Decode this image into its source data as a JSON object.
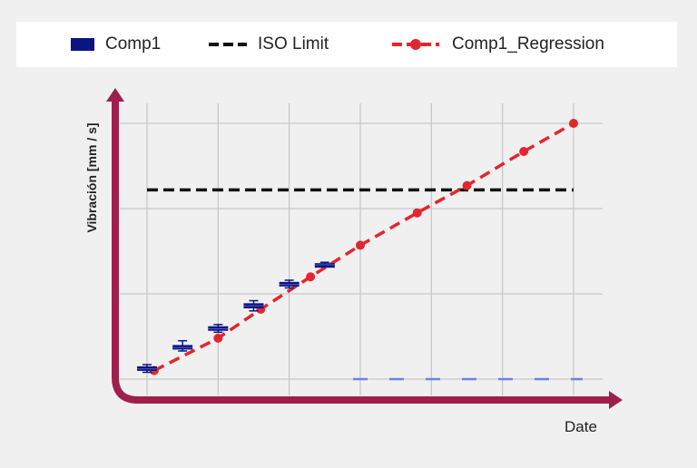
{
  "legend": {
    "comp1": "Comp1",
    "iso": "ISO Limit",
    "regression": "Comp1_Regression"
  },
  "colors": {
    "comp1": "#0a1482",
    "iso": "#111111",
    "regression": "#e3262e",
    "axis": "#a01e4b",
    "baseline": "#6e82dc",
    "grid": "#c8c8c8"
  },
  "chart_data": {
    "type": "line",
    "xlabel": "Date",
    "ylabel": "Vibración [mm / s]",
    "x_tick_labels_shown": false,
    "y_tick_labels_shown": false,
    "xlim": [
      0,
      6
    ],
    "ylim": [
      0,
      3
    ],
    "grid": true,
    "legend_position": "top",
    "comp1_boxes": [
      {
        "x": 0.0,
        "low": 0.08,
        "q1": 0.1,
        "median": 0.12,
        "q3": 0.15,
        "high": 0.17
      },
      {
        "x": 0.5,
        "low": 0.33,
        "q1": 0.35,
        "median": 0.37,
        "q3": 0.4,
        "high": 0.45
      },
      {
        "x": 1.0,
        "low": 0.55,
        "q1": 0.57,
        "median": 0.59,
        "q3": 0.62,
        "high": 0.64
      },
      {
        "x": 1.5,
        "low": 0.8,
        "q1": 0.83,
        "median": 0.86,
        "q3": 0.89,
        "high": 0.92
      },
      {
        "x": 2.0,
        "low": 1.07,
        "q1": 1.09,
        "median": 1.11,
        "q3": 1.14,
        "high": 1.16
      },
      {
        "x": 2.5,
        "low": 1.32,
        "q1": 1.33,
        "median": 1.34,
        "q3": 1.36,
        "high": 1.37
      }
    ],
    "iso_limit": {
      "value": 2.22,
      "x_start": 0.0,
      "x_end": 6.0
    },
    "regression": {
      "x": [
        0.1,
        1.0,
        1.6,
        2.3,
        3.0,
        3.8,
        4.5,
        5.3,
        6.0
      ],
      "y": [
        0.1,
        0.48,
        0.82,
        1.2,
        1.57,
        1.95,
        2.27,
        2.67,
        3.0
      ]
    },
    "baseline": {
      "value": 0.0,
      "x_start": 3.0,
      "x_end": 6.0
    }
  }
}
